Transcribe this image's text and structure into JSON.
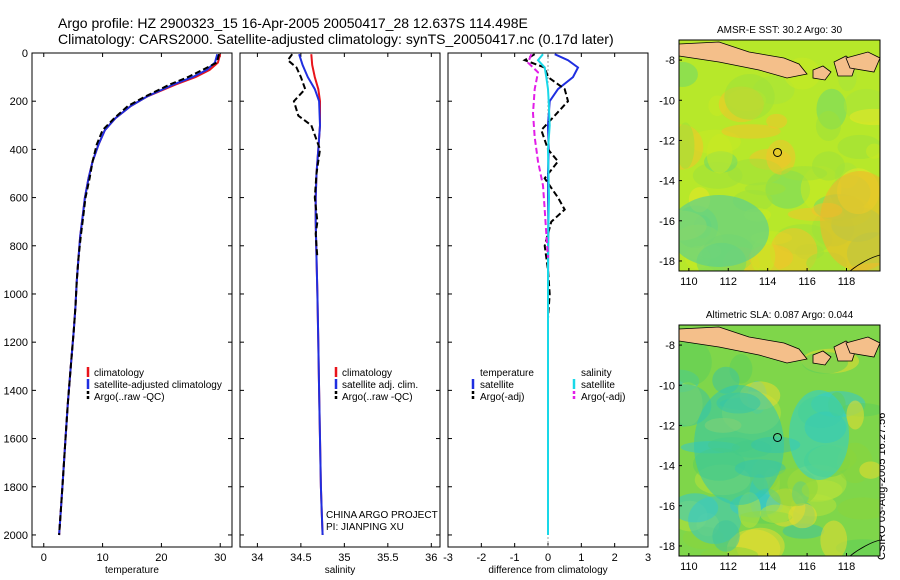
{
  "header": {
    "line1": "Argo profile: HZ 2900323_15 16-Apr-2005 20050417_28 12.637S 114.498E",
    "line2": "Climatology: CARS2000. Satellite-adjusted climatology: synTS_20050417.nc (0.17d later)"
  },
  "credit": "CSIRO 03-Aug-2005 16:27:56",
  "colors": {
    "climatology": "#e8141b",
    "satellite": "#1f2ee0",
    "argo": "#000000",
    "sal_satellite": "#19d8e8",
    "sal_argo": "#e21de8"
  },
  "chart_data": [
    {
      "type": "line",
      "panel": "temperature",
      "xlabel": "temperature",
      "ylabel": "",
      "xlim": [
        -2,
        32
      ],
      "ylim": [
        0,
        2050
      ],
      "y_inverted": true,
      "xticks": [
        0,
        10,
        20,
        30
      ],
      "yticks": [
        0,
        200,
        400,
        600,
        800,
        1000,
        1200,
        1400,
        1600,
        1800,
        2000
      ],
      "legend": [
        "climatology",
        "satellite-adjusted climatology",
        "Argo(..raw -QC)"
      ],
      "legend_placement": "lower-right",
      "series": [
        {
          "name": "climatology",
          "color": "#e8141b",
          "x": [
            30.0,
            29.6,
            28.2,
            25.8,
            22.5,
            17.6,
            14.8,
            12.2,
            10.4,
            9.3,
            8.3,
            7.6,
            7.0,
            6.6,
            6.2,
            5.9,
            5.6,
            5.4,
            5.1,
            4.6,
            4.1,
            3.7,
            3.3,
            2.9,
            2.6
          ],
          "y": [
            5,
            40,
            70,
            100,
            130,
            180,
            220,
            270,
            320,
            380,
            450,
            520,
            600,
            680,
            760,
            850,
            950,
            1050,
            1150,
            1300,
            1450,
            1600,
            1750,
            1900,
            2000
          ]
        },
        {
          "name": "satellite-adjusted climatology",
          "color": "#1f2ee0",
          "x": [
            29.5,
            29.1,
            27.7,
            25.3,
            22.1,
            17.6,
            14.8,
            12.2,
            10.4,
            9.3,
            8.3,
            7.6,
            7.0,
            6.6,
            6.2,
            5.9,
            5.6,
            5.4,
            5.1,
            4.6,
            4.1,
            3.7,
            3.3,
            2.9,
            2.6
          ],
          "y": [
            5,
            40,
            70,
            100,
            130,
            180,
            220,
            270,
            320,
            380,
            450,
            520,
            600,
            680,
            760,
            850,
            950,
            1050,
            1150,
            1300,
            1450,
            1600,
            1750,
            1900,
            2000
          ]
        },
        {
          "name": "Argo(..raw -QC)",
          "color": "#000000",
          "dash": true,
          "x": [
            29.8,
            29.4,
            27.0,
            24.5,
            21.5,
            17.3,
            14.3,
            12.0,
            10.0,
            9.0,
            8.3,
            7.8,
            7.1,
            6.7,
            6.3,
            5.9,
            5.6,
            5.4,
            5.1,
            4.6,
            4.1,
            3.7,
            3.3,
            2.9,
            2.6
          ],
          "y": [
            5,
            40,
            70,
            100,
            130,
            180,
            220,
            270,
            320,
            380,
            450,
            520,
            600,
            680,
            760,
            850,
            950,
            1050,
            1150,
            1300,
            1450,
            1600,
            1750,
            1900,
            2000
          ]
        }
      ]
    },
    {
      "type": "line",
      "panel": "salinity",
      "xlabel": "salinity",
      "xlim": [
        33.8,
        36.1
      ],
      "ylim": [
        0,
        2050
      ],
      "y_inverted": true,
      "xticks": [
        34,
        34.5,
        35,
        35.5,
        36
      ],
      "legend": [
        "climatology",
        "satellite adj. clim.",
        "Argo(..raw -QC)"
      ],
      "legend_placement": "lower-right",
      "annotation": [
        "CHINA ARGO PROJECT",
        "PI: JIANPING XU"
      ],
      "series": [
        {
          "name": "climatology",
          "color": "#e8141b",
          "x": [
            34.62,
            34.63,
            34.66,
            34.7,
            34.72,
            34.72,
            34.7,
            34.68,
            34.67,
            34.67,
            34.68,
            34.69,
            34.7,
            34.71,
            34.72,
            34.73,
            34.74,
            34.75
          ],
          "y": [
            5,
            50,
            100,
            150,
            200,
            300,
            400,
            500,
            600,
            700,
            850,
            1000,
            1200,
            1400,
            1600,
            1800,
            1900,
            2000
          ]
        },
        {
          "name": "satellite adj. clim.",
          "color": "#1f2ee0",
          "x": [
            34.48,
            34.52,
            34.58,
            34.66,
            34.71,
            34.72,
            34.7,
            34.68,
            34.67,
            34.67,
            34.68,
            34.69,
            34.7,
            34.71,
            34.72,
            34.73,
            34.74,
            34.75
          ],
          "y": [
            5,
            50,
            100,
            150,
            200,
            300,
            400,
            500,
            600,
            700,
            850,
            1000,
            1200,
            1400,
            1600,
            1800,
            1900,
            2000
          ]
        },
        {
          "name": "Argo(..raw -QC)",
          "color": "#000000",
          "dash": true,
          "x": [
            34.4,
            34.35,
            34.45,
            34.5,
            34.55,
            34.42,
            34.47,
            34.62,
            34.72,
            34.68,
            34.66,
            34.69,
            34.67,
            34.68,
            34.69
          ],
          "y": [
            5,
            30,
            60,
            100,
            150,
            200,
            260,
            300,
            400,
            500,
            600,
            700,
            750,
            800,
            850
          ]
        }
      ]
    },
    {
      "type": "line",
      "panel": "difference",
      "xlabel": "difference from climatology",
      "xlim": [
        -3,
        3
      ],
      "ylim": [
        0,
        2050
      ],
      "y_inverted": true,
      "xticks": [
        -3,
        -2,
        -1,
        0,
        1,
        2,
        3
      ],
      "legend": [
        "temperature",
        "satellite",
        "Argo(-adj)",
        "salinity",
        "satellite",
        "Argo(-adj)"
      ],
      "legend_placement": "lower",
      "series": [
        {
          "name": "satellite",
          "color": "#1f2ee0",
          "x": [
            0.2,
            0.6,
            0.9,
            0.75,
            0.3,
            0.05,
            0.0,
            0.02,
            0.0,
            0.01,
            0.0,
            0.0,
            0.0,
            0.0
          ],
          "y": [
            5,
            30,
            60,
            100,
            150,
            200,
            300,
            400,
            500,
            700,
            1000,
            1400,
            1800,
            2000
          ]
        },
        {
          "name": "Argo(-adj)",
          "color": "#000000",
          "dash": true,
          "x": [
            -0.4,
            -0.7,
            -0.1,
            0.0,
            0.5,
            0.6,
            0.2,
            -0.2,
            0.0,
            0.3,
            -0.1,
            0.3,
            0.5,
            0.1,
            -0.1,
            0.0,
            0.05,
            0.0
          ],
          "y": [
            5,
            30,
            60,
            100,
            150,
            200,
            260,
            320,
            400,
            450,
            520,
            600,
            650,
            700,
            800,
            900,
            1000,
            1100
          ]
        },
        {
          "name": "satellite",
          "color": "#19d8e8",
          "x": [
            -0.15,
            -0.3,
            -0.1,
            -0.05,
            0.0,
            0.02,
            0.05,
            0.0,
            0.03,
            0.0,
            0.0,
            0.0
          ],
          "y": [
            5,
            30,
            60,
            100,
            150,
            200,
            300,
            400,
            600,
            800,
            1200,
            2000
          ]
        },
        {
          "name": "Argo(-adj)",
          "color": "#e21de8",
          "dash": true,
          "x": [
            -0.5,
            -0.6,
            -0.3,
            -0.4,
            -0.45,
            -0.4,
            -0.3,
            -0.15,
            -0.1,
            -0.05,
            0.0
          ],
          "y": [
            5,
            40,
            80,
            150,
            250,
            350,
            450,
            550,
            650,
            750,
            850
          ]
        }
      ]
    },
    {
      "type": "heatmap",
      "panel": "sst-map",
      "title": "AMSR-E SST: 30.2 Argo: 30",
      "xlim": [
        109.5,
        119.7
      ],
      "ylim": [
        -18.5,
        -7
      ],
      "xticks": [
        110,
        112,
        114,
        116,
        118
      ],
      "yticks": [
        -8,
        -10,
        -12,
        -14,
        -16,
        -18
      ],
      "marker": {
        "lon": 114.5,
        "lat": -12.6
      }
    },
    {
      "type": "heatmap",
      "panel": "sla-map",
      "title": "Altimetric SLA: 0.087 Argo: 0.044",
      "xlim": [
        109.5,
        119.7
      ],
      "ylim": [
        -18.5,
        -7
      ],
      "xticks": [
        110,
        112,
        114,
        116,
        118
      ],
      "yticks": [
        -8,
        -10,
        -12,
        -14,
        -16,
        -18
      ],
      "marker": {
        "lon": 114.5,
        "lat": -12.6
      }
    }
  ]
}
